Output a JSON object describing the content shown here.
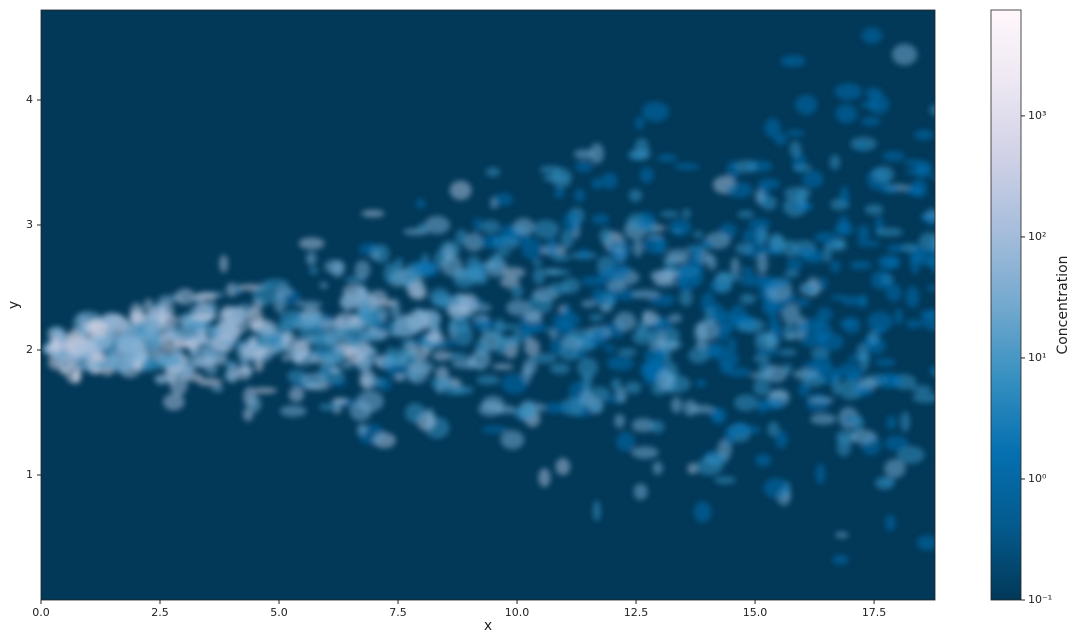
{
  "chart_data": {
    "type": "heatmap",
    "xlabel": "x",
    "ylabel": "y",
    "colorbar_label": "Concentration",
    "xlim": [
      0,
      18.78
    ],
    "ylim": [
      0,
      4.72
    ],
    "xticks": [
      {
        "value": 0,
        "label": "0.0"
      },
      2.5,
      {
        "value": 5,
        "label": "5.0"
      },
      7.5,
      {
        "value": 10,
        "label": "10.0"
      },
      12.5,
      {
        "value": 15,
        "label": "15.0"
      },
      17.5
    ],
    "yticks": [
      1,
      2,
      3,
      4
    ],
    "clim": [
      0.1,
      7500
    ],
    "clog": true,
    "cticks": [
      {
        "value": 0.1,
        "label": "10⁻¹"
      },
      {
        "value": 1,
        "label": "10⁰"
      },
      {
        "value": 10,
        "label": "10¹"
      },
      {
        "value": 100,
        "label": "10²"
      },
      {
        "value": 1000,
        "label": "10³"
      }
    ],
    "colormap": [
      "#023858",
      "#045a8d",
      "#0570b0",
      "#3690c0",
      "#74a9cf",
      "#a6bddb",
      "#d0d1e6",
      "#ece7f2",
      "#fff7fb"
    ]
  }
}
